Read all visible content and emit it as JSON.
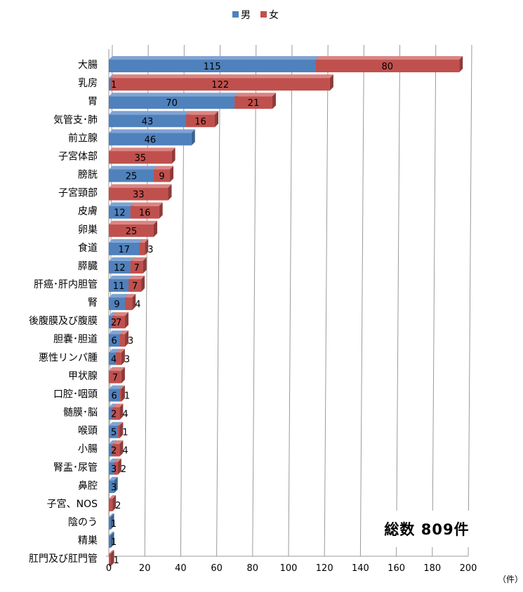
{
  "legend": {
    "male": "男",
    "female": "女"
  },
  "colors": {
    "male": "#4f81bd",
    "female": "#c0504d",
    "male_top": "#7fa3d2",
    "male_side": "#3a6391",
    "female_top": "#d98583",
    "female_side": "#8e3b39",
    "grid": "#9a9a9a"
  },
  "total_label": "総数  809件",
  "unit_label": "（件）",
  "chart_data": {
    "type": "bar",
    "orientation": "horizontal",
    "stacked": true,
    "categories": [
      "大腸",
      "乳房",
      "胃",
      "気管支･肺",
      "前立腺",
      "子宮体部",
      "膀胱",
      "子宮頸部",
      "皮膚",
      "卵巣",
      "食道",
      "膵臓",
      "肝癌･肝内胆管",
      "腎",
      "後腹膜及び腹膜",
      "胆嚢･胆道",
      "悪性リンパ腫",
      "甲状腺",
      "口腔･咽頭",
      "髄膜･脳",
      "喉頭",
      "小腸",
      "腎盂･尿管",
      "鼻腔",
      "子宮、NOS",
      "陰のう",
      "精巣",
      "肛門及び肛門管"
    ],
    "series": [
      {
        "name": "男",
        "values": [
          115,
          1,
          70,
          43,
          46,
          0,
          25,
          0,
          12,
          0,
          17,
          12,
          11,
          9,
          2,
          6,
          4,
          0,
          6,
          2,
          5,
          2,
          3,
          3,
          0,
          1,
          1,
          0
        ],
        "labels": [
          "115",
          "1",
          "70",
          "43",
          "46",
          "",
          "25",
          "",
          "12",
          "",
          "17",
          "12",
          "11",
          "9",
          "2",
          "6",
          "4",
          "",
          "6",
          "2",
          "5",
          "2",
          "3",
          "3",
          "",
          "1",
          "1",
          ""
        ]
      },
      {
        "name": "女",
        "values": [
          80,
          122,
          21,
          16,
          0,
          35,
          9,
          33,
          16,
          25,
          3,
          7,
          7,
          4,
          7,
          3,
          3,
          7,
          1,
          4,
          1,
          4,
          2,
          0,
          2,
          0,
          0,
          1
        ],
        "labels": [
          "80",
          "122",
          "21",
          "16",
          "",
          "35",
          "9",
          "33",
          "16",
          "25",
          "3",
          "7",
          "7",
          "4",
          "7",
          "3",
          "3",
          "7",
          "1",
          "4",
          "1",
          "4",
          "2",
          "",
          "2",
          "",
          "",
          "1"
        ]
      }
    ],
    "xlim": [
      0,
      200
    ],
    "xticks": [
      "0",
      "20",
      "40",
      "60",
      "80",
      "100",
      "120",
      "140",
      "160",
      "180",
      "200"
    ],
    "grid": true,
    "legend_position": "top"
  }
}
